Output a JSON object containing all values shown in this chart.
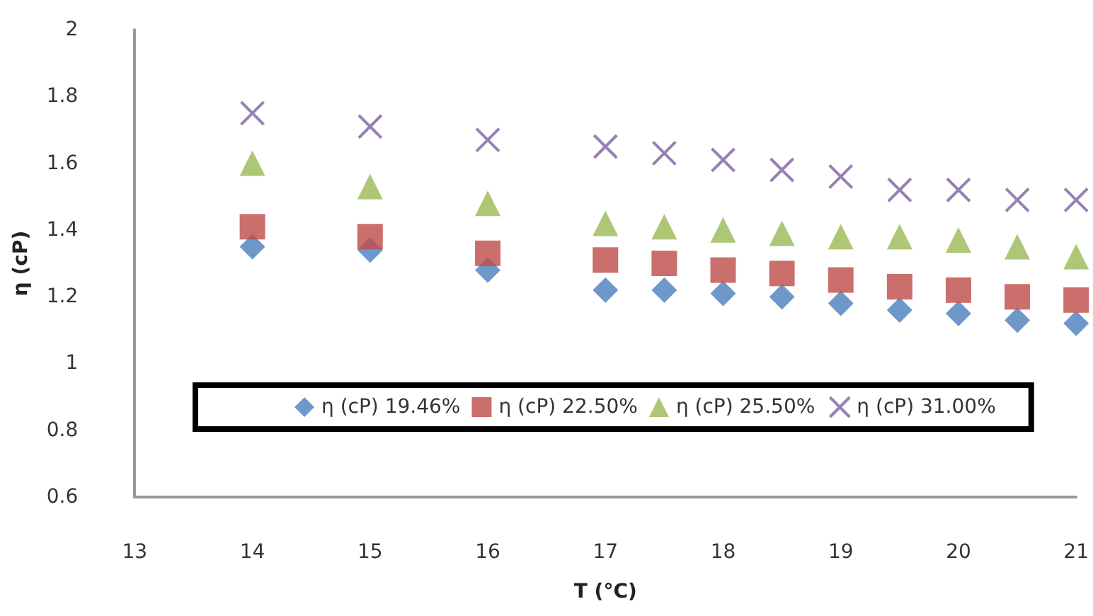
{
  "chart_data": {
    "type": "scatter",
    "xlabel": "T (°C)",
    "ylabel": "η (cP)",
    "x": [
      14,
      15,
      16,
      17,
      17.5,
      18,
      18.5,
      19,
      19.5,
      20,
      20.5,
      21
    ],
    "series": [
      {
        "name": "η (cP) 19.46%",
        "color": "#4a7ebb",
        "marker": "diamond",
        "values": [
          1.35,
          1.34,
          1.28,
          1.22,
          1.22,
          1.21,
          1.2,
          1.18,
          1.16,
          1.15,
          1.13,
          1.12
        ]
      },
      {
        "name": "η (cP) 22.50%",
        "color": "#be4b48",
        "marker": "square",
        "values": [
          1.41,
          1.38,
          1.33,
          1.31,
          1.3,
          1.28,
          1.27,
          1.25,
          1.23,
          1.22,
          1.2,
          1.19
        ]
      },
      {
        "name": "η (cP) 25.50%",
        "color": "#98b954",
        "marker": "triangle",
        "values": [
          1.6,
          1.53,
          1.48,
          1.42,
          1.41,
          1.4,
          1.39,
          1.38,
          1.38,
          1.37,
          1.35,
          1.32
        ]
      },
      {
        "name": "η (cP) 31.00%",
        "color": "#7d60a0",
        "marker": "cross",
        "values": [
          1.75,
          1.71,
          1.67,
          1.65,
          1.63,
          1.61,
          1.58,
          1.56,
          1.52,
          1.52,
          1.49,
          1.49
        ]
      }
    ],
    "xlim": [
      13,
      21
    ],
    "xticks": [
      13,
      14,
      15,
      16,
      17,
      18,
      19,
      20,
      21
    ],
    "ylim": [
      0.6,
      2
    ],
    "yticks": [
      0.6,
      0.8,
      1,
      1.2,
      1.4,
      1.6,
      1.8,
      2
    ],
    "grid": false,
    "legend": "bottom"
  }
}
